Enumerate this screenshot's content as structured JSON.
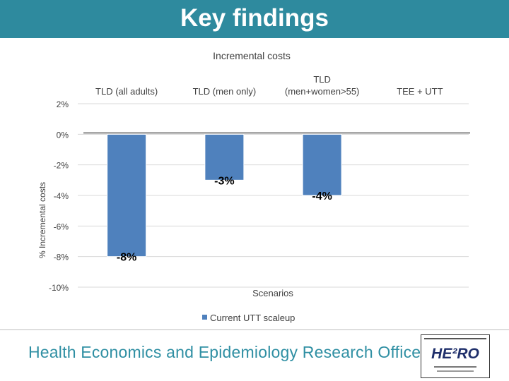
{
  "slide": {
    "title": "Key findings",
    "organization": "Health Economics and Epidemiology Research Office",
    "logo_text": "HE²RO"
  },
  "colors": {
    "header": "#2e8a9e",
    "bar": "#4f81bd",
    "org_text": "#2f8fa3"
  },
  "chart_data": {
    "type": "bar",
    "title": "Incremental costs",
    "xlabel": "Scenarios",
    "ylabel": "% Incremental costs",
    "ylim": [
      -10,
      2
    ],
    "yticks": [
      2,
      0,
      -2,
      -4,
      -6,
      -8,
      -10
    ],
    "ytick_labels": [
      "2%",
      "0%",
      "-2%",
      "-4%",
      "-6%",
      "-8%",
      "-10%"
    ],
    "categories": [
      "TLD (all adults)",
      "TLD (men only)",
      "TLD (men+women>55)",
      "TEE + UTT"
    ],
    "category_label_lines": [
      [
        "TLD (all adults)"
      ],
      [
        "TLD (men only)"
      ],
      [
        "TLD",
        "(men+women>55)"
      ],
      [
        "TEE + UTT"
      ]
    ],
    "series": [
      {
        "name": "Current UTT scaleup",
        "values": [
          -8,
          -3,
          -4,
          null
        ],
        "data_labels": [
          "-8%",
          "-3%",
          "-4%",
          ""
        ]
      }
    ],
    "grid": true,
    "legend": "bottom"
  }
}
